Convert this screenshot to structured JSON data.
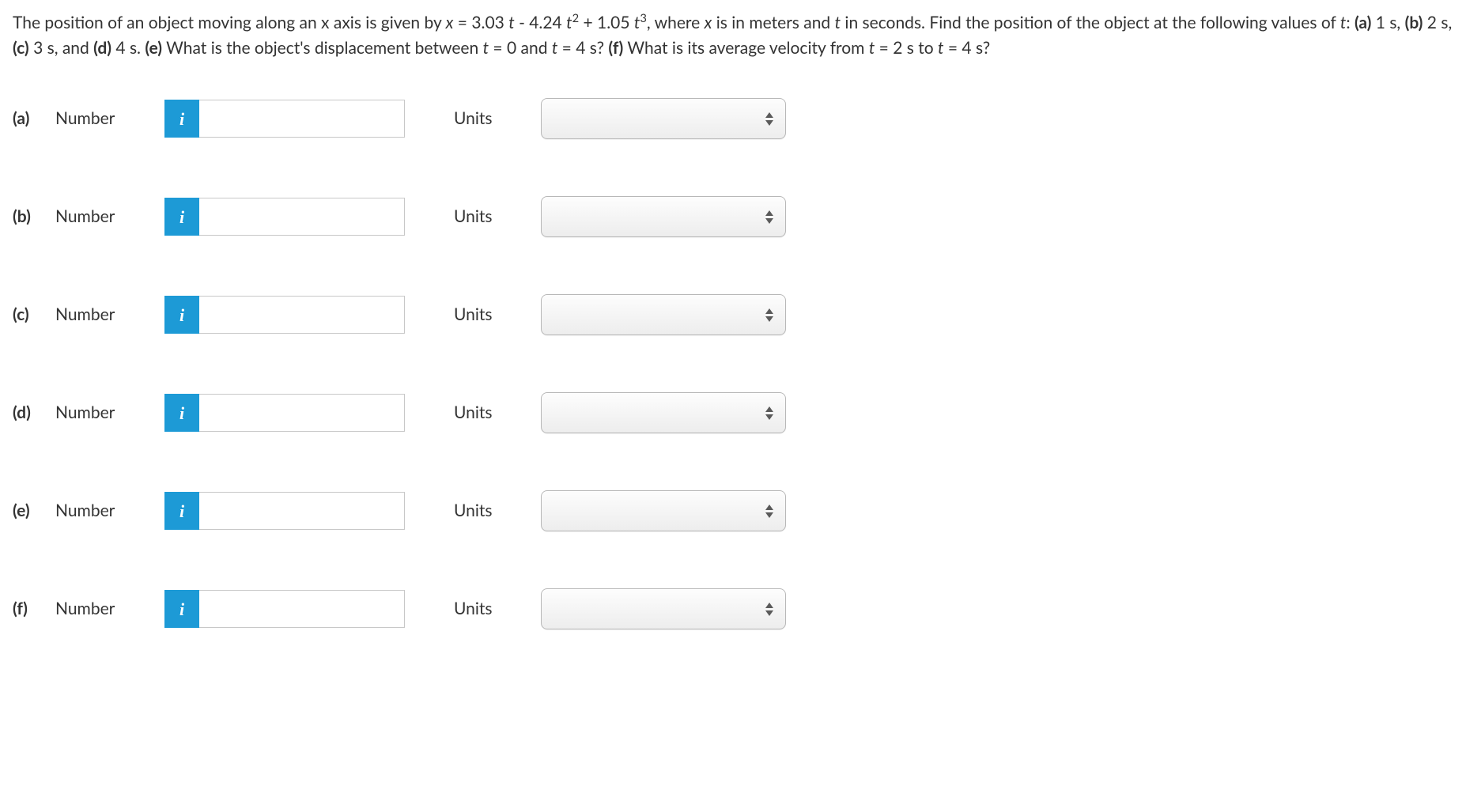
{
  "question": {
    "prefix": "The position of an object moving along an x axis is given by ",
    "equation_html": "<i>x</i> = 3.03 <i>t</i> - 4.24 <i>t</i><sup>2</sup> + 1.05 <i>t</i><sup>3</sup>",
    "mid": ", where <i>x</i> is in meters and <i>t</i> in seconds. Find the position of the object at the following values of <i>t</i>: <b>(a)</b> 1 s, <b>(b)</b> 2 s, <b>(c)</b> 3 s, and <b>(d)</b> 4 s. <b>(e)</b> What is the object's displacement between <i>t</i> = 0 and <i>t</i> = 4 s? <b>(f)</b> What is its average velocity from <i>t</i> = 2 s to <i>t</i> = 4 s?"
  },
  "labels": {
    "number": "Number",
    "units": "Units",
    "info_icon": "i"
  },
  "rows": [
    {
      "part": "(a)",
      "value": "",
      "units_value": ""
    },
    {
      "part": "(b)",
      "value": "",
      "units_value": ""
    },
    {
      "part": "(c)",
      "value": "",
      "units_value": ""
    },
    {
      "part": "(d)",
      "value": "",
      "units_value": ""
    },
    {
      "part": "(e)",
      "value": "",
      "units_value": ""
    },
    {
      "part": "(f)",
      "value": "",
      "units_value": ""
    }
  ],
  "colors": {
    "info_bg": "#1d9ad6",
    "input_border": "#c8c8c8",
    "select_border": "#b8b8b8",
    "select_gradient_top": "#fdfdfd",
    "select_gradient_bottom": "#ededed",
    "text": "#333333",
    "stepper": "#5a5a5a"
  }
}
